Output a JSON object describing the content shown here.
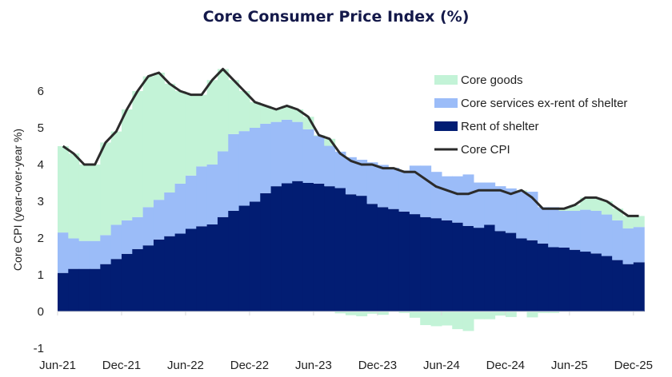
{
  "chart_data": {
    "type": "area",
    "subtype": "stacked-step-area-with-line",
    "title": "Core Consumer Price Index (%)",
    "xlabel": "",
    "ylabel": "Core CPI (year-over-year %)",
    "ylim": [
      -1,
      6.8
    ],
    "yticks": [
      -1,
      0,
      1,
      2,
      3,
      4,
      5,
      6
    ],
    "xtick_labels": [
      "Jun-21",
      "Dec-21",
      "Jun-22",
      "Dec-22",
      "Jun-23",
      "Dec-23",
      "Jun-24",
      "Dec-24",
      "Jun-25",
      "Dec-25"
    ],
    "x_start": "Jun-21",
    "x_end": "Dec-25",
    "frequency": "monthly",
    "grid": false,
    "legend_placement": "top-right",
    "series": [
      {
        "name": "Rent of shelter",
        "kind": "stacked-area",
        "color": "#021d73",
        "values": [
          1.05,
          1.16,
          1.16,
          1.16,
          1.29,
          1.43,
          1.57,
          1.7,
          1.8,
          1.96,
          2.05,
          2.12,
          2.25,
          2.32,
          2.37,
          2.57,
          2.74,
          2.88,
          2.99,
          3.22,
          3.41,
          3.49,
          3.55,
          3.5,
          3.48,
          3.41,
          3.36,
          3.19,
          3.15,
          2.93,
          2.84,
          2.79,
          2.72,
          2.65,
          2.57,
          2.54,
          2.48,
          2.42,
          2.33,
          2.28,
          2.36,
          2.19,
          2.14,
          1.99,
          1.94,
          1.85,
          1.75,
          1.74,
          1.68,
          1.63,
          1.58,
          1.51,
          1.4,
          1.29,
          1.34
        ]
      },
      {
        "name": "Core services ex-rent of shelter",
        "kind": "stacked-area",
        "color": "#9bbcf8",
        "values": [
          1.1,
          0.83,
          0.76,
          0.76,
          0.79,
          0.93,
          0.91,
          0.87,
          1.04,
          1.08,
          1.19,
          1.36,
          1.45,
          1.63,
          1.63,
          1.79,
          2.09,
          2.03,
          2.01,
          1.89,
          1.75,
          1.73,
          1.61,
          1.46,
          1.3,
          1.1,
          0.99,
          1.01,
          0.98,
          1.13,
          1.15,
          1.12,
          1.12,
          1.32,
          1.4,
          1.26,
          1.2,
          1.26,
          1.4,
          1.23,
          1.15,
          1.22,
          1.21,
          1.27,
          1.32,
          0.99,
          1.09,
          1.0,
          1.06,
          1.14,
          1.16,
          1.13,
          1.08,
          0.97,
          0.96
        ]
      },
      {
        "name": "Core goods",
        "kind": "stacked-area",
        "color": "#c3f3d7",
        "values": [
          2.35,
          2.31,
          2.08,
          2.08,
          2.52,
          2.54,
          3.02,
          3.43,
          3.56,
          3.46,
          2.96,
          2.52,
          2.2,
          1.95,
          2.3,
          2.24,
          1.47,
          1.09,
          0.7,
          0.49,
          0.34,
          0.38,
          0.34,
          0.34,
          0.02,
          0.19,
          -0.05,
          -0.1,
          -0.13,
          -0.06,
          -0.09,
          -0.01,
          -0.04,
          -0.17,
          -0.37,
          -0.4,
          -0.38,
          -0.48,
          -0.53,
          -0.21,
          -0.21,
          -0.11,
          -0.15,
          0.04,
          -0.16,
          -0.04,
          -0.04,
          0.06,
          0.16,
          0.33,
          0.36,
          0.36,
          0.32,
          0.34,
          0.3
        ]
      },
      {
        "name": "Core CPI",
        "kind": "line",
        "color": "#2b2b2b",
        "values": [
          4.5,
          4.3,
          4.0,
          4.0,
          4.6,
          4.9,
          5.5,
          6.0,
          6.4,
          6.5,
          6.2,
          6.0,
          5.9,
          5.9,
          6.3,
          6.6,
          6.3,
          6.0,
          5.7,
          5.6,
          5.5,
          5.6,
          5.5,
          5.3,
          4.8,
          4.7,
          4.3,
          4.1,
          4.0,
          4.0,
          3.9,
          3.9,
          3.8,
          3.8,
          3.6,
          3.4,
          3.3,
          3.2,
          3.2,
          3.3,
          3.3,
          3.3,
          3.2,
          3.3,
          3.1,
          2.8,
          2.8,
          2.8,
          2.9,
          3.1,
          3.1,
          3.0,
          2.8,
          2.6,
          2.6
        ]
      }
    ],
    "legend": [
      "Core goods",
      "Core services ex-rent of shelter",
      "Rent of shelter",
      "Core CPI"
    ]
  }
}
